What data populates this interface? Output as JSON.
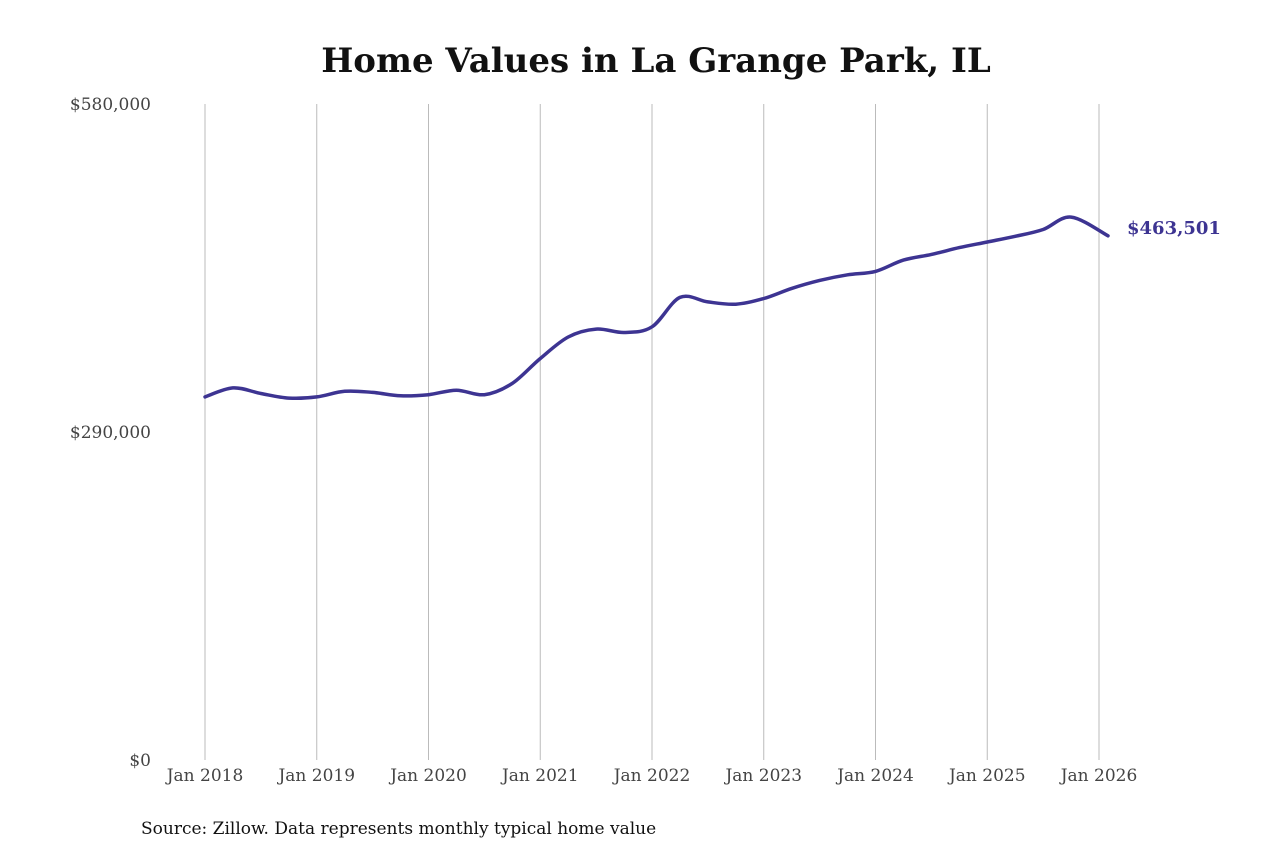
{
  "colors": {
    "series": "#3d3492",
    "grid": "#bbbbbb",
    "text": "#111111",
    "axis_text": "#444444"
  },
  "chart_data": {
    "type": "line",
    "title": "Home Values in La Grange Park, IL",
    "xlabel": "",
    "ylabel": "",
    "ylim": [
      0,
      580000
    ],
    "xlim": [
      "2018-01",
      "2026-01"
    ],
    "grid": "vertical",
    "legend": "none",
    "y_tick_labels": [
      {
        "value": 580000,
        "label": "$580,000"
      },
      {
        "value": 290000,
        "label": "$290,000"
      },
      {
        "value": 0,
        "label": "$0"
      }
    ],
    "x_tick_labels": [
      {
        "value": "2018-01",
        "label": "Jan 2018"
      },
      {
        "value": "2019-01",
        "label": "Jan 2019"
      },
      {
        "value": "2020-01",
        "label": "Jan 2020"
      },
      {
        "value": "2021-01",
        "label": "Jan 2021"
      },
      {
        "value": "2022-01",
        "label": "Jan 2022"
      },
      {
        "value": "2023-01",
        "label": "Jan 2023"
      },
      {
        "value": "2024-01",
        "label": "Jan 2024"
      },
      {
        "value": "2025-01",
        "label": "Jan 2025"
      },
      {
        "value": "2026-01",
        "label": "Jan 2026"
      }
    ],
    "series": [
      {
        "x": [
          "2018-01",
          "2018-04",
          "2018-07",
          "2018-10",
          "2019-01",
          "2019-04",
          "2019-07",
          "2019-10",
          "2020-01",
          "2020-04",
          "2020-07",
          "2020-10",
          "2021-01",
          "2021-04",
          "2021-07",
          "2021-10",
          "2022-01",
          "2022-04",
          "2022-07",
          "2022-10",
          "2023-01",
          "2023-04",
          "2023-07",
          "2023-10",
          "2024-01",
          "2024-04",
          "2024-07",
          "2024-10",
          "2025-01",
          "2025-04",
          "2025-07",
          "2025-10",
          "2026-01"
        ],
        "values": [
          321000,
          329000,
          324000,
          320000,
          321000,
          326000,
          325000,
          322000,
          323000,
          327000,
          323000,
          333000,
          355000,
          374000,
          381000,
          378000,
          383000,
          409000,
          405000,
          403000,
          408000,
          417000,
          424000,
          429000,
          432000,
          442000,
          447000,
          453000,
          458000,
          463000,
          469000,
          480000,
          463501
        ]
      }
    ],
    "end_label": "$463,501"
  },
  "source": "Source: Zillow. Data represents monthly typical home value"
}
